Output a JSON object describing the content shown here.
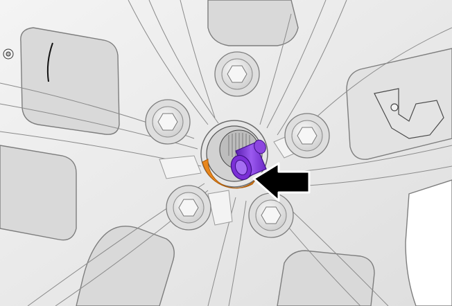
{
  "illustration": {
    "subject": "wheel-hub-with-lug-nuts",
    "colors": {
      "rim_fill": "#ebebeb",
      "rim_light": "#f6f6f6",
      "rim_stroke": "#7d7d7d",
      "rim_dark": "#4a4a4a",
      "pocket_fill": "#dcdcdc",
      "highlight_ring": "#e8871e",
      "highlight_tool": "#7b2fd6",
      "arrow": "#000000",
      "arrow_outline": "#ffffff"
    },
    "icons": {
      "pointer": "arrow-left-icon",
      "tool": "socket-tool-icon"
    }
  }
}
